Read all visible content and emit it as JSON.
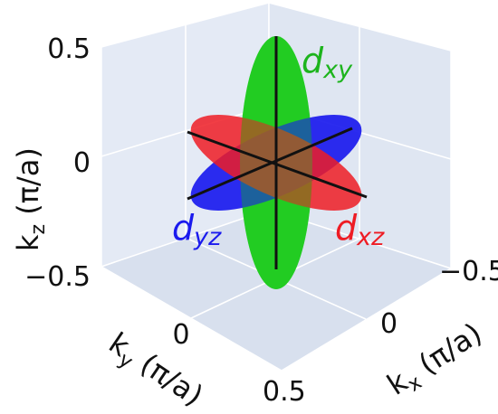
{
  "chart_data": {
    "type": "3d-surface",
    "axes": {
      "x": {
        "label_base": "k",
        "label_sub": "x",
        "label_unit": " (π/a)",
        "ticks": [
          "−0.5",
          "0",
          "0.5"
        ],
        "range": [
          -0.5,
          0.5
        ]
      },
      "y": {
        "label_base": "k",
        "label_sub": "y",
        "label_unit": " (π/a)",
        "ticks": [
          "0",
          "0.5"
        ],
        "range": [
          -0.5,
          0.5
        ]
      },
      "z": {
        "label_base": "k",
        "label_sub": "z",
        "label_unit": " (π/a)",
        "ticks": [
          "0.5",
          "0",
          "−0.5"
        ],
        "range": [
          -0.5,
          0.5
        ]
      }
    },
    "series": [
      {
        "name_base": "d",
        "name_sub": "xy",
        "color": "#22cc22"
      },
      {
        "name_base": "d",
        "name_sub": "yz",
        "color": "#1a1aee"
      },
      {
        "name_base": "d",
        "name_sub": "xz",
        "color": "#ee1c24"
      }
    ],
    "grid": true,
    "pane_color": "#e6edf7"
  }
}
